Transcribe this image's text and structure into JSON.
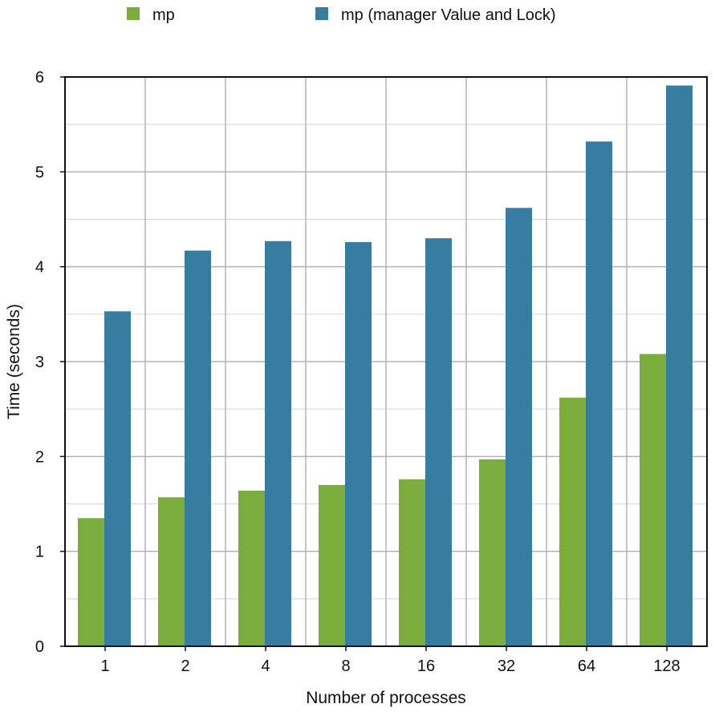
{
  "chart_data": {
    "type": "bar",
    "title": "",
    "xlabel": "Number of processes",
    "ylabel": "Time (seconds)",
    "categories": [
      "1",
      "2",
      "4",
      "8",
      "16",
      "32",
      "64",
      "128"
    ],
    "series": [
      {
        "name": "mp",
        "color": "#7aad3c",
        "values": [
          1.35,
          1.57,
          1.64,
          1.7,
          1.76,
          1.97,
          2.62,
          3.08
        ]
      },
      {
        "name": "mp (manager Value and Lock)",
        "color": "#377da1",
        "values": [
          3.53,
          4.17,
          4.27,
          4.26,
          4.3,
          4.62,
          5.32,
          5.91
        ]
      }
    ],
    "ylim": [
      0,
      6
    ],
    "yticks": [
      0,
      1,
      2,
      3,
      4,
      5,
      6
    ],
    "grid": true,
    "legend_position": "top"
  }
}
